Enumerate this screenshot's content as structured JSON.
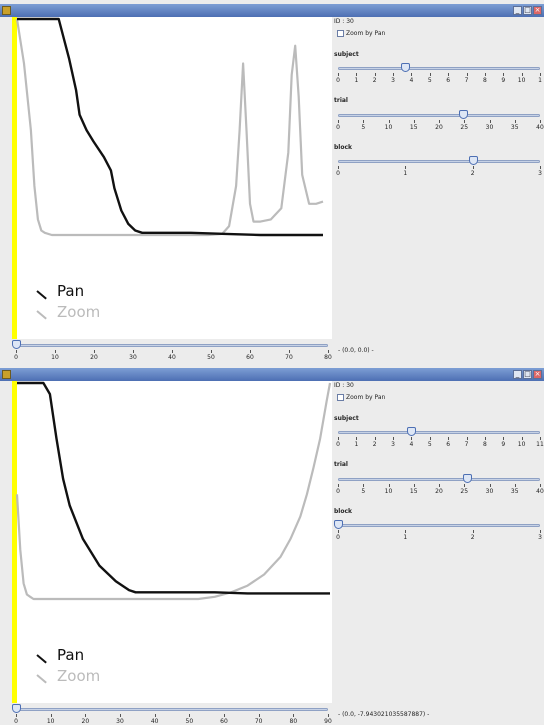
{
  "windows": [
    {
      "id_label": "ID : 30",
      "zoom_by_pan_label": "Zoom by Pan",
      "zoom_by_pan_checked": false,
      "subject": {
        "label": "subject",
        "ticks": [
          "0",
          "1",
          "2",
          "3",
          "4",
          "5",
          "6",
          "7",
          "8",
          "9",
          "10",
          "1"
        ],
        "value_fraction": 0.33
      },
      "trial": {
        "label": "trial",
        "ticks": [
          "0",
          "5",
          "10",
          "15",
          "20",
          "25",
          "30",
          "35",
          "40"
        ],
        "value_fraction": 0.62
      },
      "block": {
        "label": "block",
        "ticks": [
          "0",
          "1",
          "2",
          "3"
        ],
        "value_fraction": 0.67
      },
      "bottom_slider": {
        "ticks": [
          "0",
          "10",
          "20",
          "30",
          "40",
          "50",
          "60",
          "70",
          "80"
        ],
        "value_fraction": 0.0
      },
      "coord_readout": "- (0.0, 0.0) -",
      "legend": [
        {
          "name": "Pan",
          "color": "#111111"
        },
        {
          "name": "Zoom",
          "color": "#bbbbbb"
        }
      ]
    },
    {
      "id_label": "ID : 30",
      "zoom_by_pan_label": "Zoom by Pan",
      "zoom_by_pan_checked": false,
      "subject": {
        "label": "subject",
        "ticks": [
          "0",
          "1",
          "2",
          "3",
          "4",
          "5",
          "6",
          "7",
          "8",
          "9",
          "10",
          "11"
        ],
        "value_fraction": 0.36
      },
      "trial": {
        "label": "trial",
        "ticks": [
          "0",
          "5",
          "10",
          "15",
          "20",
          "25",
          "30",
          "35",
          "40"
        ],
        "value_fraction": 0.64
      },
      "block": {
        "label": "block",
        "ticks": [
          "0",
          "1",
          "2",
          "3"
        ],
        "value_fraction": 0.0
      },
      "bottom_slider": {
        "ticks": [
          "0",
          "10",
          "20",
          "30",
          "40",
          "50",
          "60",
          "70",
          "80",
          "90"
        ],
        "value_fraction": 0.0
      },
      "coord_readout": "- (0.0, -7.943021035587887) -",
      "legend": [
        {
          "name": "Pan",
          "color": "#111111"
        },
        {
          "name": "Zoom",
          "color": "#bbbbbb"
        }
      ]
    }
  ],
  "chart_data": [
    {
      "type": "line",
      "series": [
        {
          "name": "Pan",
          "color": "#111111",
          "x": [
            0,
            3,
            10,
            12,
            15,
            17,
            18,
            20,
            22,
            25,
            27,
            28,
            30,
            32,
            34,
            36,
            40,
            50,
            60,
            70,
            80,
            88
          ],
          "y": [
            0,
            0,
            0,
            0,
            -1.8,
            -3.2,
            -4.3,
            -5,
            -5.5,
            -6.2,
            -6.8,
            -7.6,
            -8.6,
            -9.2,
            -9.5,
            -9.6,
            -9.6,
            -9.6,
            -9.65,
            -9.7,
            -9.7,
            -9.7
          ]
        },
        {
          "name": "Zoom",
          "color": "#bbbbbb",
          "x": [
            0,
            2,
            4,
            5,
            6,
            7,
            8,
            10,
            20,
            30,
            40,
            50,
            55,
            59,
            61,
            63,
            64,
            65,
            66,
            67,
            68,
            70,
            73,
            76,
            78,
            79,
            80,
            81,
            82,
            84,
            86,
            88
          ],
          "y": [
            0,
            -2,
            -5,
            -7.5,
            -9,
            -9.5,
            -9.6,
            -9.7,
            -9.7,
            -9.7,
            -9.7,
            -9.7,
            -9.7,
            -9.65,
            -9.3,
            -7.5,
            -5,
            -2,
            -5,
            -8.3,
            -9.1,
            -9.1,
            -9.0,
            -8.5,
            -6,
            -2.5,
            -1.2,
            -3.5,
            -7,
            -8.3,
            -8.3,
            -8.2
          ]
        }
      ]
    },
    {
      "type": "line",
      "series": [
        {
          "name": "Pan",
          "color": "#111111",
          "x": [
            0,
            3,
            8,
            10,
            12,
            14,
            16,
            20,
            25,
            30,
            34,
            36,
            40,
            50,
            60,
            70,
            80,
            90,
            95
          ],
          "y": [
            0,
            0,
            0,
            -0.5,
            -2.5,
            -4.3,
            -5.5,
            -7,
            -8.2,
            -8.9,
            -9.3,
            -9.4,
            -9.4,
            -9.4,
            -9.4,
            -9.45,
            -9.45,
            -9.45,
            -9.45
          ]
        },
        {
          "name": "Zoom",
          "color": "#bbbbbb",
          "x": [
            0,
            1,
            2,
            3,
            4,
            5,
            8,
            20,
            40,
            55,
            60,
            65,
            70,
            75,
            80,
            83,
            86,
            88,
            90,
            92,
            94,
            95
          ],
          "y": [
            -5,
            -7.5,
            -9,
            -9.5,
            -9.6,
            -9.7,
            -9.7,
            -9.7,
            -9.7,
            -9.7,
            -9.6,
            -9.4,
            -9.1,
            -8.6,
            -7.8,
            -7,
            -6,
            -5,
            -3.8,
            -2.5,
            -0.8,
            0
          ]
        }
      ]
    }
  ]
}
